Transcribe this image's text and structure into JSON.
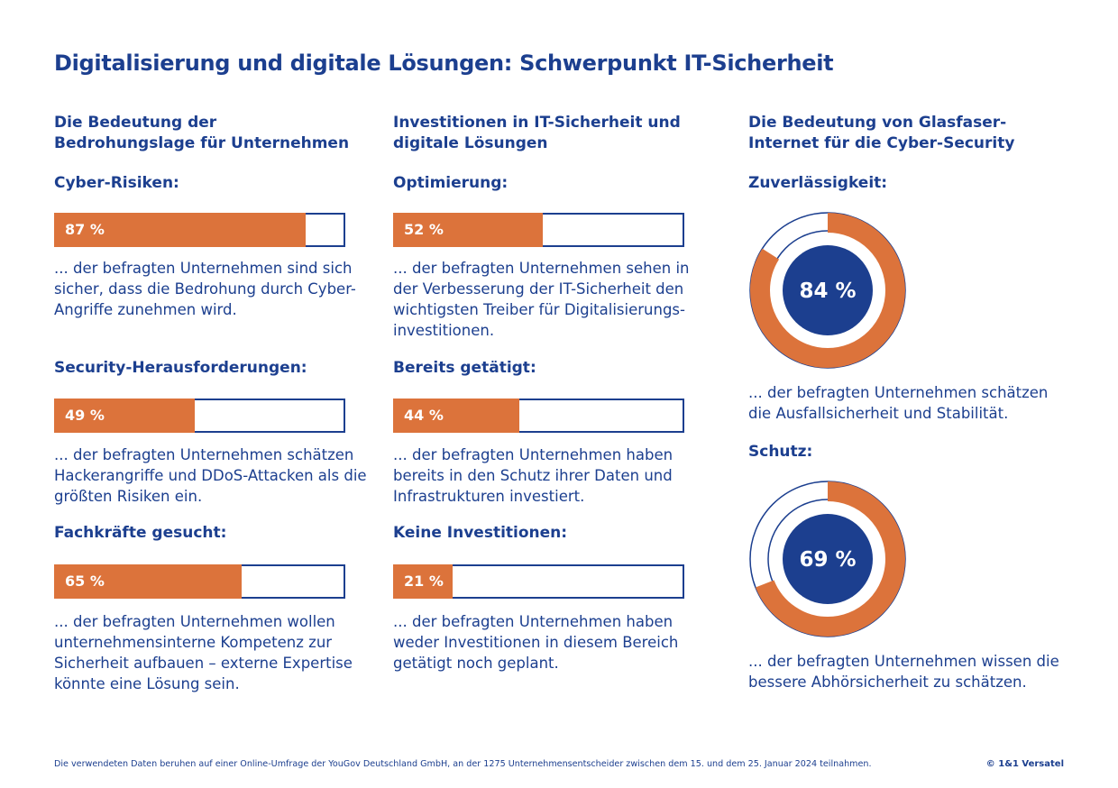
{
  "title": "Digitalisierung und digitale Lösungen: Schwerpunkt IT-Sicherheit",
  "colors": {
    "accent": "#1c3f8f",
    "fill": "#dc733b"
  },
  "columns": [
    {
      "type": "bar",
      "heading": "Die Bedeutung der Bedrohungslage für Unternehmen",
      "items": [
        {
          "label": "Cyber-Risiken:",
          "value": 87,
          "value_label": "87 %",
          "text": "... der befragten Unternehmen sind sich sicher, dass die Bedrohung durch Cyber-Angriffe zunehmen wird."
        },
        {
          "label": "Security-Herausforderungen:",
          "value": 49,
          "value_label": "49 %",
          "text": "... der befragten Unternehmen schätzen Hackerangriffe und DDoS-Attacken als die größten Risiken ein."
        },
        {
          "label": "Fachkräfte gesucht:",
          "value": 65,
          "value_label": "65 %",
          "text": "... der befragten Unternehmen wollen unternehmensinterne Kompetenz zur Sicherheit aufbauen – externe Expertise könnte eine Lösung sein."
        }
      ]
    },
    {
      "type": "bar",
      "heading": "Investitionen in IT-Sicherheit und digitale Lösungen",
      "items": [
        {
          "label": "Optimierung:",
          "value": 52,
          "value_label": "52 %",
          "text": "... der befragten Unternehmen sehen in der Verbesserung der IT-Sicherheit den wichtigsten Treiber für Digitalisierungs-investitionen."
        },
        {
          "label": "Bereits getätigt:",
          "value": 44,
          "value_label": "44 %",
          "text": "... der befragten Unternehmen haben bereits in den Schutz ihrer Daten und Infrastrukturen investiert."
        },
        {
          "label": "Keine Investitionen:",
          "value": 21,
          "value_label": "21 %",
          "text": "... der befragten Unternehmen haben weder Investitionen in diesem Bereich getätigt noch geplant."
        }
      ]
    },
    {
      "type": "donut",
      "heading": "Die Bedeutung von Glasfaser-Internet für die Cyber-Security",
      "items": [
        {
          "label": "Zuverlässigkeit:",
          "value": 84,
          "value_label": "84 %",
          "text": "...  der befragten Unternehmen schätzen die  Ausfallsicherheit und Stabilität."
        },
        {
          "label": "Schutz:",
          "value": 69,
          "value_label": "69 %",
          "text": "... der befragten Unternehmen wissen die bessere Abhörsicherheit zu schätzen."
        }
      ]
    }
  ],
  "footer": "Die verwendeten Daten beruhen auf einer Online-Umfrage der YouGov Deutschland GmbH, an der 1275 Unternehmensentscheider zwischen dem 15. und dem 25. Januar 2024 teilnahmen.",
  "copyright": "© 1&1 Versatel"
}
